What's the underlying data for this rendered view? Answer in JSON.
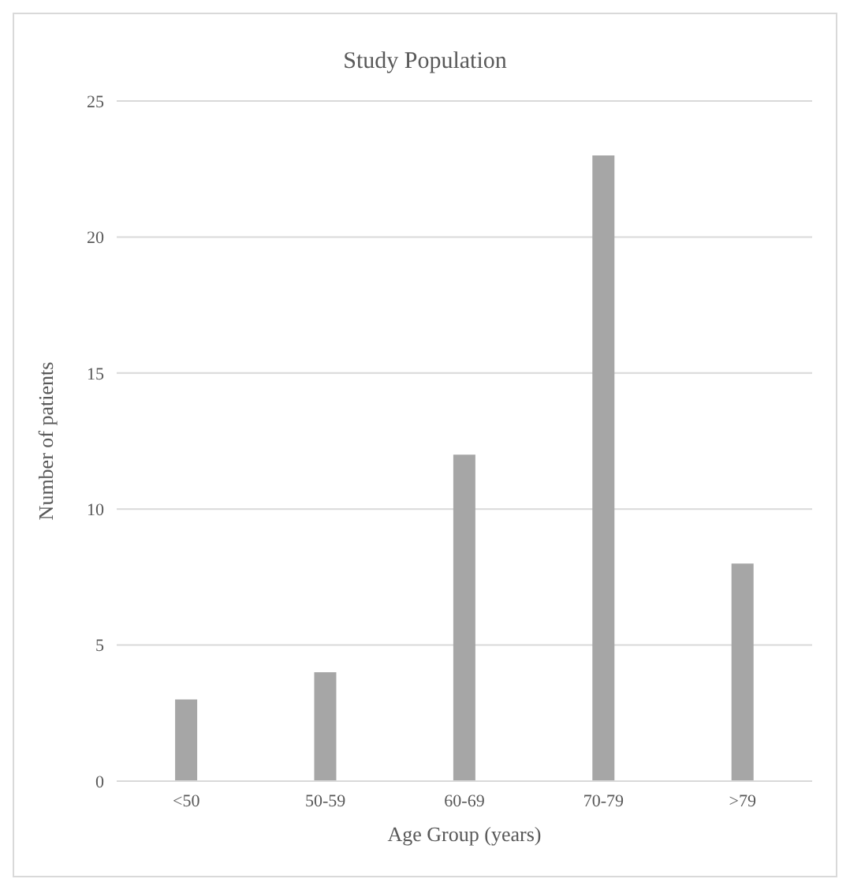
{
  "chart_data": {
    "type": "bar",
    "title": "Study Population",
    "xlabel": "Age Group (years)",
    "ylabel": "Number of patients",
    "categories": [
      "<50",
      "50-59",
      "60-69",
      "70-79",
      ">79"
    ],
    "values": [
      3,
      4,
      12,
      23,
      8
    ],
    "color": "#a6a6a6",
    "ylim": [
      0,
      25
    ],
    "yticks": [
      0,
      5,
      10,
      15,
      20,
      25
    ],
    "grid": "y",
    "legend": false
  }
}
